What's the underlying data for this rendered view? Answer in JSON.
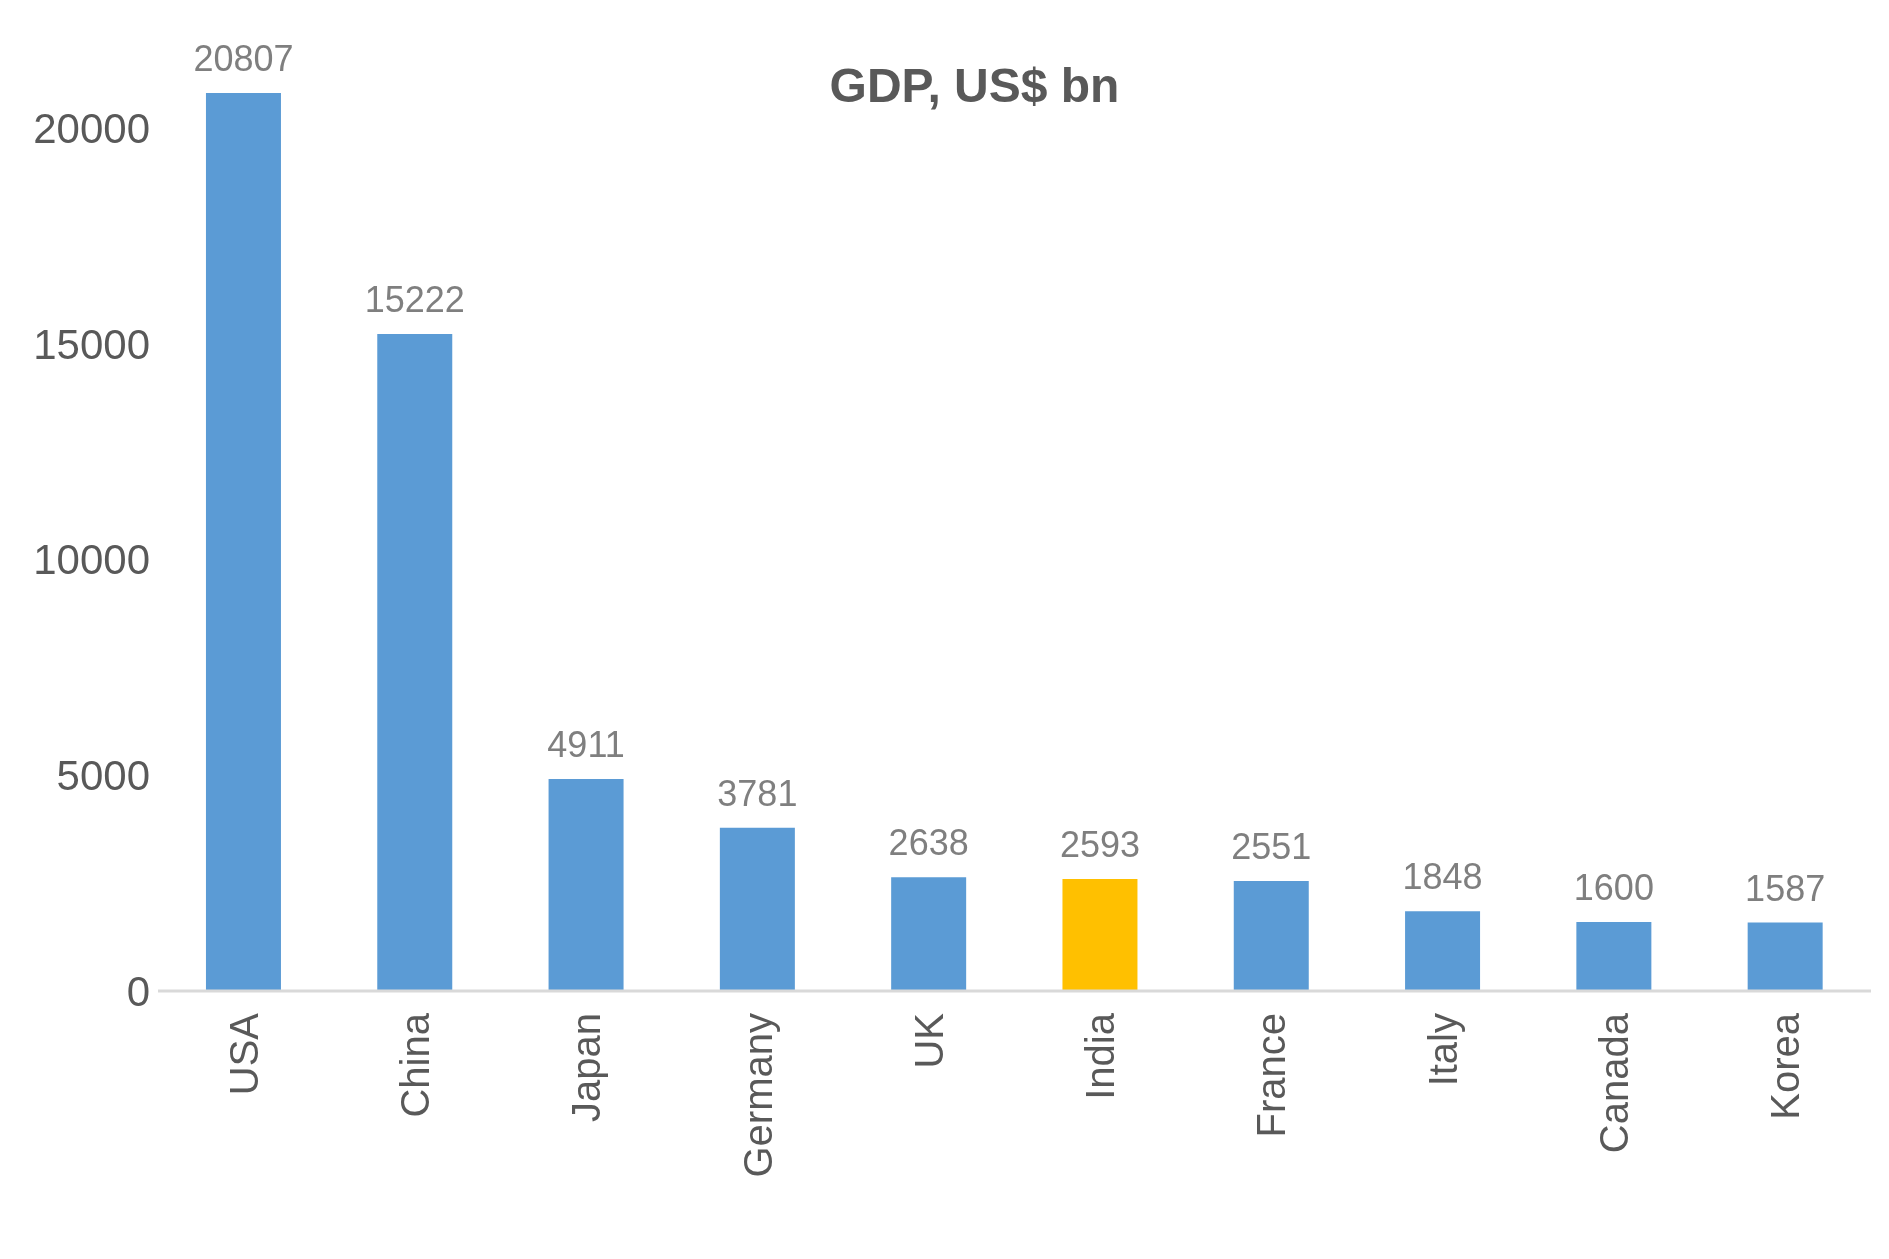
{
  "chart_data": {
    "type": "bar",
    "title": "GDP, US$ bn",
    "categories": [
      "USA",
      "China",
      "Japan",
      "Germany",
      "UK",
      "India",
      "France",
      "Italy",
      "Canada",
      "Korea"
    ],
    "values": [
      20807,
      15222,
      4911,
      3781,
      2638,
      2593,
      2551,
      1848,
      1600,
      1587
    ],
    "colors": [
      "#5b9bd5",
      "#5b9bd5",
      "#5b9bd5",
      "#5b9bd5",
      "#5b9bd5",
      "#ffc000",
      "#5b9bd5",
      "#5b9bd5",
      "#5b9bd5",
      "#5b9bd5"
    ],
    "ylim": [
      0,
      20807
    ],
    "yticks": [
      0,
      5000,
      10000,
      15000,
      20000
    ],
    "grid": false,
    "legend": false,
    "data_labels": true
  }
}
